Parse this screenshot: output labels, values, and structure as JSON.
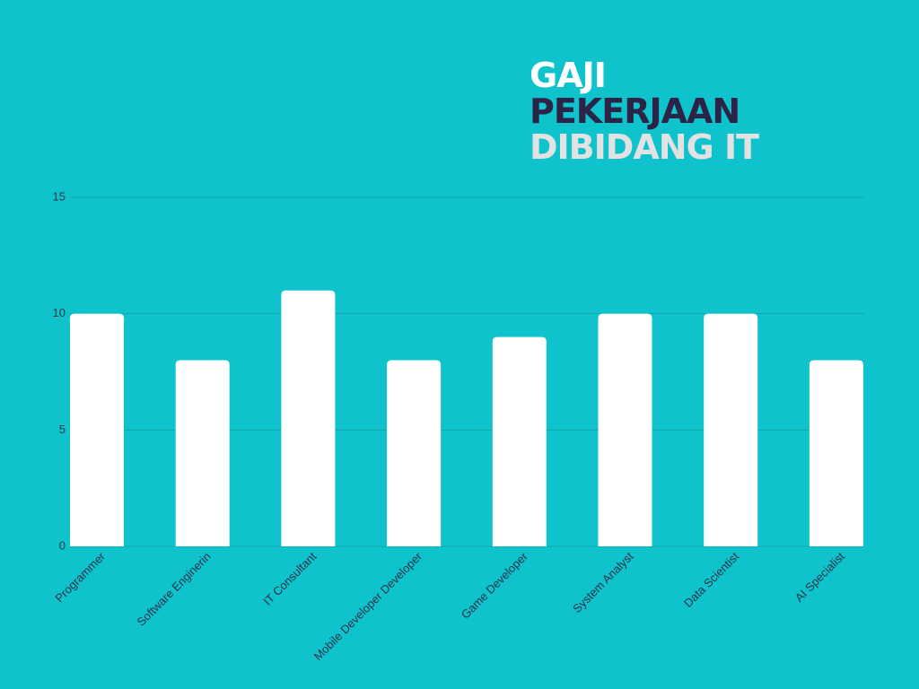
{
  "chart_data": {
    "type": "bar",
    "title": [
      "GAJI",
      "PEKERJAAN",
      "DIBIDANG IT"
    ],
    "title_colors": [
      "#ffffff",
      "#2b2446",
      "#e2e2e2"
    ],
    "categories": [
      "Programmer",
      "Software Enginerin",
      "IT Consultant",
      "Mobile Developer Developer",
      "Game Developer",
      "System Analyst",
      "Data Scientist",
      "AI Specialist"
    ],
    "values": [
      10,
      8,
      11,
      8,
      9,
      10,
      10,
      8
    ],
    "color": "#ffffff",
    "ylim": [
      0,
      15
    ],
    "yticks": [
      0,
      5,
      10,
      15
    ],
    "grid": true
  }
}
